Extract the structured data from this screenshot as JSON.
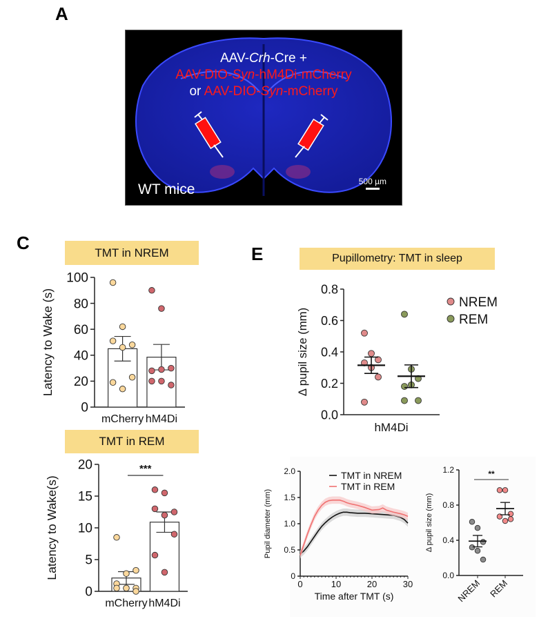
{
  "panels": {
    "A": {
      "letter": "A",
      "construct_line1_parts": [
        "AAV-",
        "Crh",
        "-Cre +"
      ],
      "construct_line2_parts": [
        "AAV-DIO-",
        "Syn",
        "-hM4Di-mCherry"
      ],
      "construct_line3_parts": [
        "or ",
        "AAV-DIO-",
        "Syn",
        "-mCherry"
      ],
      "label": "WT  mice",
      "scale_bar": "500 µm",
      "colors": {
        "background": "#000000",
        "tissue": "#1a22c8",
        "syringe": "#ff1010",
        "red_text": "#ff1a1a"
      }
    },
    "C": {
      "letter": "C",
      "banner_top": "TMT in NREM",
      "banner_bottom": "TMT in REM"
    },
    "E": {
      "letter": "E",
      "banner": "Pupillometry: TMT in sleep"
    }
  },
  "chart_data": [
    {
      "id": "nrem-latency",
      "type": "bar",
      "title": "TMT in NREM",
      "ylabel": "Latency to Wake (s)",
      "xlabel": "",
      "categories": [
        "mCherry",
        "hM4Di"
      ],
      "ylim": [
        0,
        100
      ],
      "yticks": [
        0,
        20,
        40,
        60,
        80,
        100
      ],
      "series": [
        {
          "name": "mCherry",
          "mean": 45,
          "sem": 9.5,
          "color": "#fbd89c",
          "points": [
            96,
            62,
            48,
            51,
            46,
            23,
            19,
            14
          ]
        },
        {
          "name": "hM4Di",
          "mean": 38.5,
          "sem": 9.8,
          "color": "#d0676d",
          "points": [
            90,
            76,
            30,
            28,
            29,
            17,
            20,
            20
          ]
        }
      ]
    },
    {
      "id": "rem-latency",
      "type": "bar",
      "title": "TMT in REM",
      "ylabel": "Latency to Wake(s)",
      "xlabel": "",
      "categories": [
        "mCherry",
        "hM4Di"
      ],
      "ylim": [
        0,
        20
      ],
      "yticks": [
        0,
        5,
        10,
        15,
        20
      ],
      "significance": "***",
      "series": [
        {
          "name": "mCherry",
          "mean": 2.1,
          "sem": 1.0,
          "color": "#fbd89c",
          "points": [
            8.5,
            2.8,
            3.3,
            1.2,
            0.5,
            0.5,
            0.5,
            0.5,
            0
          ]
        },
        {
          "name": "hM4Di",
          "mean": 10.9,
          "sem": 1.6,
          "color": "#d0676d",
          "points": [
            16,
            15.5,
            12.5,
            13,
            12,
            9,
            5.7,
            3
          ]
        }
      ]
    },
    {
      "id": "pupil-hm4di",
      "type": "scatter",
      "title": "Pupillometry: TMT in sleep",
      "ylabel": "Δ pupil size (mm)",
      "xlabel": "hM4Di",
      "ylim": [
        0,
        0.8
      ],
      "yticks": [
        "0.0",
        "0.2",
        "0.4",
        "0.6",
        "0.8"
      ],
      "legend": {
        "placement": "top-right",
        "entries": [
          {
            "label": "NREM",
            "color": "#e08a8a"
          },
          {
            "label": "REM",
            "color": "#8a9a5b"
          }
        ]
      },
      "series": [
        {
          "name": "NREM",
          "mean": 0.315,
          "sem": 0.052,
          "color": "#e08a8a",
          "points": [
            0.52,
            0.39,
            0.35,
            0.33,
            0.3,
            0.24,
            0.08
          ]
        },
        {
          "name": "REM",
          "mean": 0.245,
          "sem": 0.072,
          "color": "#8a9a5b",
          "points": [
            0.64,
            0.29,
            0.23,
            0.18,
            0.19,
            0.09,
            0.09
          ]
        }
      ]
    },
    {
      "id": "pupil-trace",
      "type": "line",
      "title": "",
      "ylabel": "Pupil diameter (mm)",
      "xlabel": "Time after TMT (s)",
      "xlim": [
        0,
        30
      ],
      "ylim": [
        0,
        2.0
      ],
      "xticks": [
        0,
        10,
        20,
        30
      ],
      "yticks": [
        "0",
        "0.5",
        "1.0",
        "1.5",
        "2.0"
      ],
      "legend": {
        "placement": "top-right"
      },
      "series": [
        {
          "name": "TMT in NREM",
          "color": "#111111",
          "band": "#cccccc",
          "x": [
            0,
            1,
            2,
            3,
            4,
            5,
            6,
            7,
            8,
            9,
            10,
            11,
            12,
            13,
            14,
            16,
            18,
            20,
            22,
            24,
            26,
            28,
            29,
            30
          ],
          "y": [
            0.42,
            0.48,
            0.56,
            0.66,
            0.76,
            0.86,
            0.95,
            1.02,
            1.08,
            1.13,
            1.17,
            1.2,
            1.22,
            1.22,
            1.21,
            1.2,
            1.2,
            1.19,
            1.18,
            1.17,
            1.16,
            1.12,
            1.08,
            1.01
          ]
        },
        {
          "name": "TMT in REM",
          "color": "#f07070",
          "band": "#f8c8c8",
          "x": [
            0,
            1,
            2,
            3,
            4,
            5,
            6,
            7,
            8,
            9,
            10,
            11,
            12,
            13,
            14,
            16,
            18,
            20,
            22,
            23,
            24,
            26,
            28,
            29,
            30
          ],
          "y": [
            0.4,
            0.6,
            0.8,
            0.98,
            1.14,
            1.26,
            1.35,
            1.41,
            1.44,
            1.45,
            1.45,
            1.45,
            1.43,
            1.4,
            1.38,
            1.35,
            1.31,
            1.26,
            1.27,
            1.3,
            1.26,
            1.22,
            1.19,
            1.17,
            1.14
          ]
        }
      ]
    },
    {
      "id": "pupil-nrem-rem",
      "type": "scatter",
      "title": "",
      "ylabel": "Δ pupil size (mm)",
      "xlabel": "",
      "categories": [
        "NREM",
        "REM"
      ],
      "ylim": [
        0,
        1.2
      ],
      "yticks": [
        "0.0",
        "0.4",
        "0.8",
        "1.2"
      ],
      "significance": "**",
      "series": [
        {
          "name": "NREM",
          "mean": 0.39,
          "sem": 0.065,
          "color": "#8c8c8c",
          "points": [
            0.61,
            0.54,
            0.38,
            0.32,
            0.28,
            0.18
          ]
        },
        {
          "name": "REM",
          "mean": 0.76,
          "sem": 0.07,
          "color": "#f28a8a",
          "points": [
            0.97,
            0.97,
            0.7,
            0.67,
            0.62,
            0.64
          ]
        }
      ]
    }
  ]
}
